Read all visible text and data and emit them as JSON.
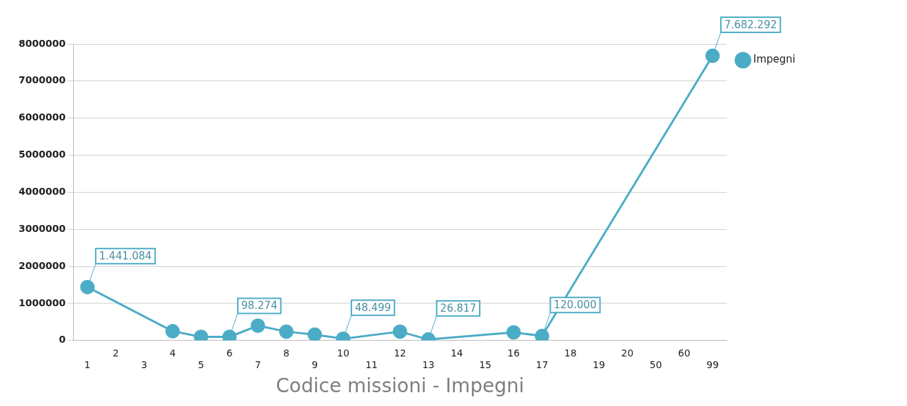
{
  "chart_data": {
    "type": "line",
    "xlabel": "Codice missioni - Impegni",
    "categories": [
      "1",
      "2",
      "3",
      "4",
      "5",
      "6",
      "7",
      "8",
      "9",
      "10",
      "11",
      "12",
      "13",
      "14",
      "15",
      "16",
      "17",
      "18",
      "19",
      "20",
      "50",
      "60",
      "99"
    ],
    "series": [
      {
        "name": "Impegni",
        "color": "#4bacc6",
        "values": [
          1441084,
          null,
          null,
          250000,
          100000,
          98274,
          400000,
          240000,
          160000,
          48499,
          null,
          240000,
          26817,
          null,
          null,
          220000,
          120000,
          null,
          null,
          null,
          null,
          null,
          7682292
        ],
        "value_labels": [
          "1.441.084",
          null,
          null,
          null,
          null,
          "98.274",
          null,
          null,
          null,
          "48.499",
          null,
          null,
          "26.817",
          null,
          null,
          null,
          "120.000",
          null,
          null,
          null,
          null,
          null,
          "7.682.292"
        ]
      }
    ],
    "ylim": [
      0,
      8000000
    ],
    "yticks": [
      0,
      1000000,
      2000000,
      3000000,
      4000000,
      5000000,
      6000000,
      7000000,
      8000000
    ],
    "grid": "y",
    "legend": "top right",
    "marker": "circle",
    "line_style": "solid"
  }
}
